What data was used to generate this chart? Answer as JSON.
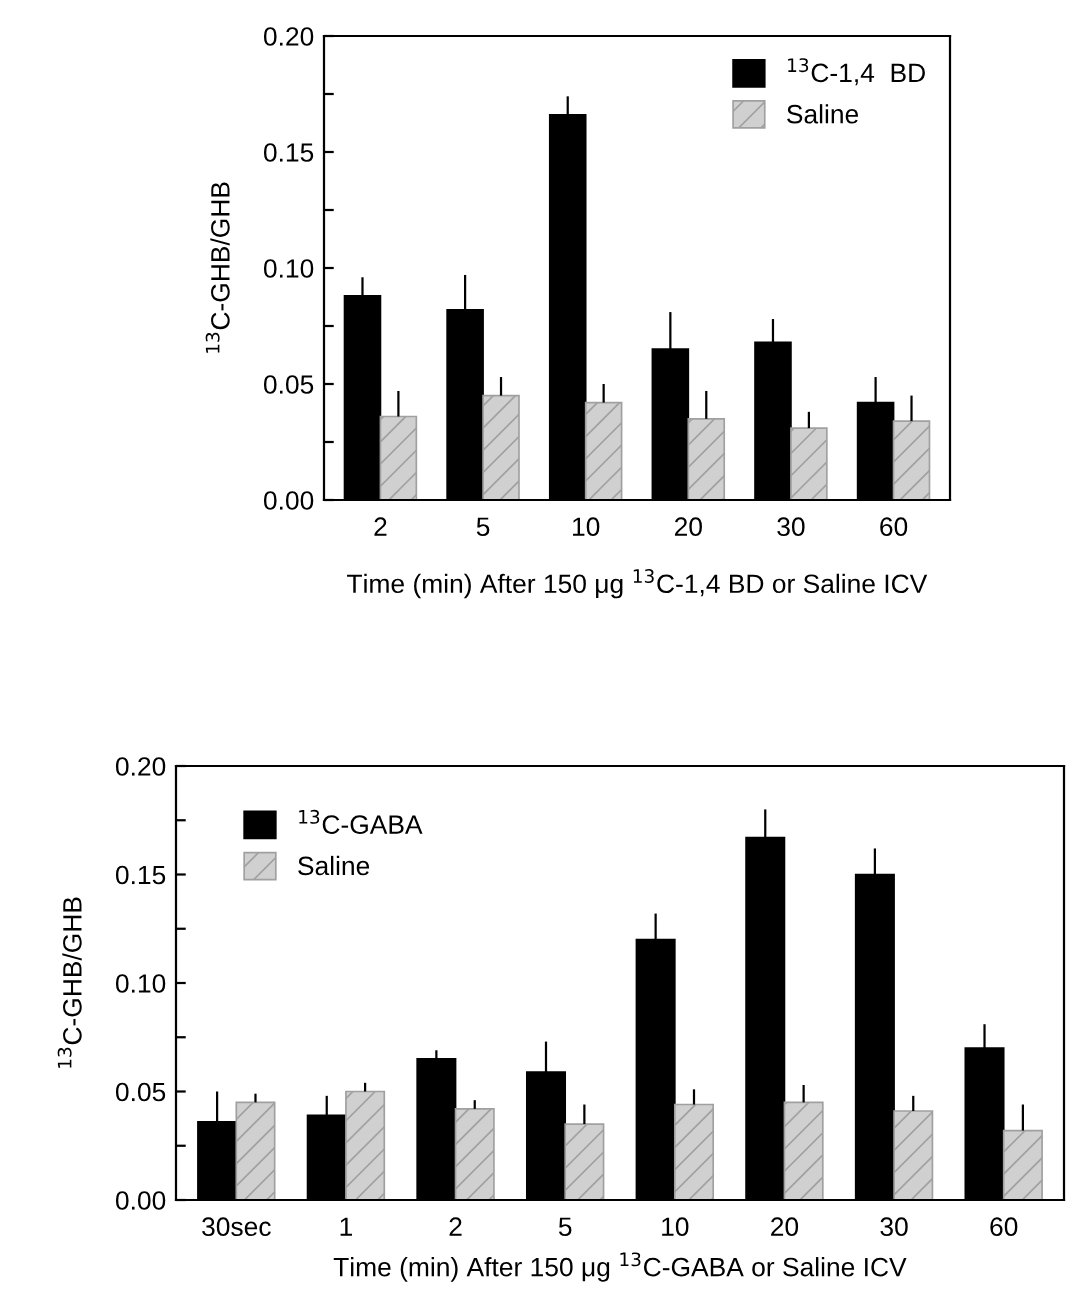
{
  "chart_data": [
    {
      "type": "bar",
      "ylabel": "$^{13}$C-GHB/GHB",
      "xlabel": "Time (min) After 150 μg $^{13}$C-1,4 BD or Saline ICV",
      "categories": [
        "2",
        "5",
        "10",
        "20",
        "30",
        "60"
      ],
      "series": [
        {
          "name": "$^{13}$C-1,4  BD",
          "color": "#000000",
          "values": [
            0.088,
            0.082,
            0.166,
            0.065,
            0.068,
            0.042
          ],
          "errors": [
            [
              0.088,
              0.096
            ],
            [
              0.082,
              0.097
            ],
            [
              0.166,
              0.174
            ],
            [
              0.065,
              0.081
            ],
            [
              0.068,
              0.078
            ],
            [
              0.042,
              0.053
            ]
          ]
        },
        {
          "name": "Saline",
          "color": "#a0a0a0",
          "values": [
            0.036,
            0.045,
            0.042,
            0.035,
            0.031,
            0.034
          ],
          "errors": [
            [
              0.036,
              0.047
            ],
            [
              0.045,
              0.053
            ],
            [
              0.042,
              0.05
            ],
            [
              0.035,
              0.047
            ],
            [
              0.031,
              0.038
            ],
            [
              0.034,
              0.045
            ]
          ]
        }
      ],
      "ylim": [
        0,
        0.2
      ],
      "yticks": [
        {
          "value": 0,
          "label": "0.00"
        },
        {
          "value": 0.025,
          "label": null
        },
        {
          "value": 0.05,
          "label": "0.05"
        },
        {
          "value": 0.075,
          "label": null
        },
        {
          "value": 0.1,
          "label": "0.10"
        },
        {
          "value": 0.125,
          "label": null
        },
        {
          "value": 0.15,
          "label": "0.15"
        },
        {
          "value": 0.175,
          "label": null
        },
        {
          "value": 0.2,
          "label": "0.20"
        }
      ],
      "legend": "top right"
    },
    {
      "type": "bar",
      "ylabel": "$^{13}$C-GHB/GHB",
      "xlabel": "Time (min) After 150 μg $^{13}$C-GABA or Saline ICV",
      "categories": [
        "30sec",
        "1",
        "2",
        "5",
        "10",
        "20",
        "30",
        "60"
      ],
      "series": [
        {
          "name": "$^{13}$C-GABA",
          "color": "#000000",
          "values": [
            0.036,
            0.039,
            0.065,
            0.059,
            0.12,
            0.167,
            0.15,
            0.07
          ],
          "errors": [
            [
              0.036,
              0.05
            ],
            [
              0.039,
              0.048
            ],
            [
              0.065,
              0.069
            ],
            [
              0.059,
              0.073
            ],
            [
              0.12,
              0.132
            ],
            [
              0.167,
              0.18
            ],
            [
              0.15,
              0.162
            ],
            [
              0.07,
              0.081
            ]
          ]
        },
        {
          "name": "Saline",
          "color": "#a0a0a0",
          "values": [
            0.045,
            0.05,
            0.042,
            0.035,
            0.044,
            0.045,
            0.041,
            0.032
          ],
          "errors": [
            [
              0.045,
              0.049
            ],
            [
              0.05,
              0.054
            ],
            [
              0.042,
              0.046
            ],
            [
              0.035,
              0.044
            ],
            [
              0.044,
              0.051
            ],
            [
              0.045,
              0.053
            ],
            [
              0.041,
              0.048
            ],
            [
              0.032,
              0.044
            ]
          ]
        }
      ],
      "ylim": [
        0,
        0.2
      ],
      "yticks": [
        {
          "value": 0,
          "label": "0.00"
        },
        {
          "value": 0.025,
          "label": null
        },
        {
          "value": 0.05,
          "label": "0.05"
        },
        {
          "value": 0.075,
          "label": null
        },
        {
          "value": 0.1,
          "label": "0.10"
        },
        {
          "value": 0.125,
          "label": null
        },
        {
          "value": 0.15,
          "label": "0.15"
        },
        {
          "value": 0.175,
          "label": null
        },
        {
          "value": 0.2,
          "label": "0.20"
        }
      ],
      "legend": "top left"
    }
  ]
}
